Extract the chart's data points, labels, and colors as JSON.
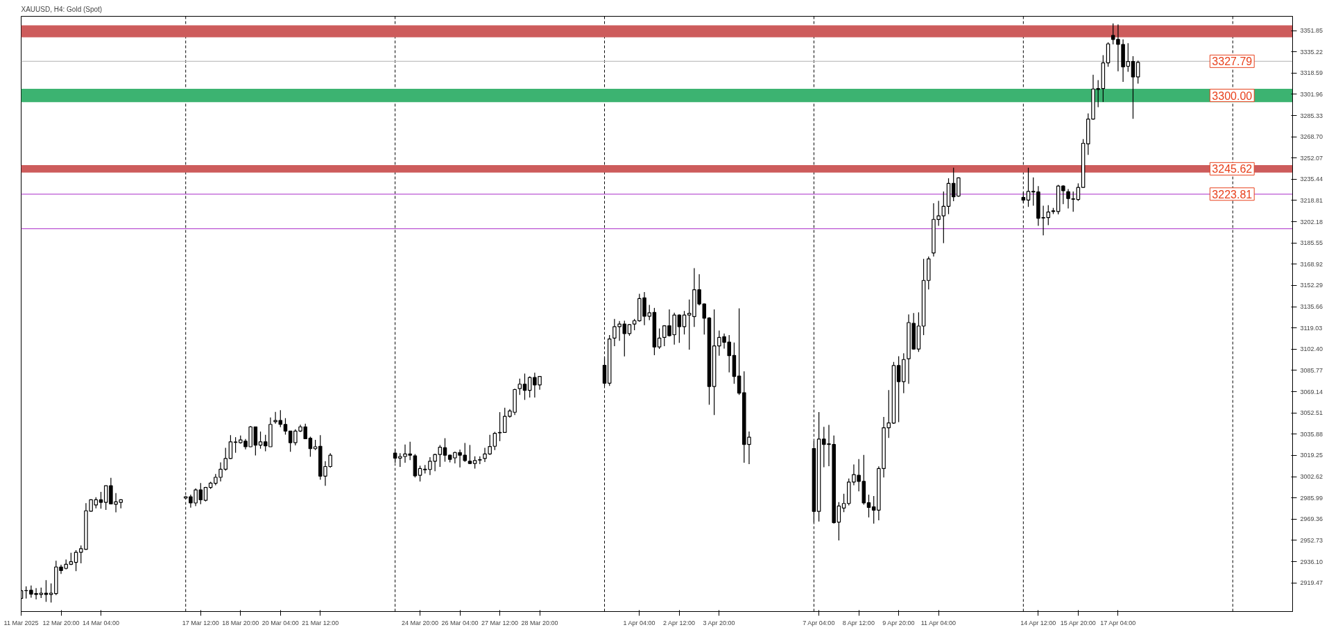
{
  "chart_data": {
    "type": "candlestick",
    "title": "XAUUSD, H4: Gold (Spot)",
    "x": [
      "2025-03-11T12:00",
      "2025-03-11T16:00",
      "2025-03-11T20:00",
      "2025-03-12T00:00",
      "2025-03-12T04:00",
      "2025-03-12T08:00",
      "2025-03-12T12:00",
      "2025-03-12T16:00",
      "2025-03-12T20:00",
      "2025-03-13T00:00",
      "2025-03-13T04:00",
      "2025-03-13T08:00",
      "2025-03-13T12:00",
      "2025-03-13T16:00",
      "2025-03-13T20:00",
      "2025-03-14T00:00",
      "2025-03-14T04:00",
      "2025-03-14T08:00",
      "2025-03-14T12:00",
      "2025-03-14T16:00",
      "2025-03-14T20:00",
      "2025-03-17T00:00",
      "2025-03-17T04:00",
      "2025-03-17T08:00",
      "2025-03-17T12:00",
      "2025-03-17T16:00",
      "2025-03-17T20:00",
      "2025-03-18T00:00",
      "2025-03-18T04:00",
      "2025-03-18T08:00",
      "2025-03-18T12:00",
      "2025-03-18T16:00",
      "2025-03-18T20:00",
      "2025-03-19T00:00",
      "2025-03-19T04:00",
      "2025-03-19T08:00",
      "2025-03-19T12:00",
      "2025-03-19T16:00",
      "2025-03-19T20:00",
      "2025-03-20T00:00",
      "2025-03-20T04:00",
      "2025-03-20T08:00",
      "2025-03-20T12:00",
      "2025-03-20T16:00",
      "2025-03-20T20:00",
      "2025-03-21T00:00",
      "2025-03-21T04:00",
      "2025-03-21T08:00",
      "2025-03-21T12:00",
      "2025-03-21T16:00",
      "2025-03-21T20:00",
      "2025-03-24T00:00",
      "2025-03-24T04:00",
      "2025-03-24T08:00",
      "2025-03-24T12:00",
      "2025-03-24T16:00",
      "2025-03-24T20:00",
      "2025-03-25T00:00",
      "2025-03-25T04:00",
      "2025-03-25T08:00",
      "2025-03-25T12:00",
      "2025-03-25T16:00",
      "2025-03-25T20:00",
      "2025-03-26T00:00",
      "2025-03-26T04:00",
      "2025-03-26T08:00",
      "2025-03-26T12:00",
      "2025-03-26T16:00",
      "2025-03-26T20:00",
      "2025-03-27T00:00",
      "2025-03-27T04:00",
      "2025-03-27T08:00",
      "2025-03-27T12:00",
      "2025-03-27T16:00",
      "2025-03-27T20:00",
      "2025-03-28T00:00",
      "2025-03-28T04:00",
      "2025-03-28T08:00",
      "2025-03-28T12:00",
      "2025-03-28T16:00",
      "2025-03-28T20:00",
      "2025-03-31T00:00",
      "2025-03-31T04:00",
      "2025-03-31T08:00",
      "2025-03-31T12:00",
      "2025-03-31T16:00",
      "2025-03-31T20:00",
      "2025-04-01T00:00",
      "2025-04-01T04:00",
      "2025-04-01T08:00",
      "2025-04-01T12:00",
      "2025-04-01T16:00",
      "2025-04-01T20:00",
      "2025-04-02T00:00",
      "2025-04-02T04:00",
      "2025-04-02T08:00",
      "2025-04-02T12:00",
      "2025-04-02T16:00",
      "2025-04-02T20:00",
      "2025-04-03T00:00",
      "2025-04-03T04:00",
      "2025-04-03T08:00",
      "2025-04-03T12:00",
      "2025-04-03T16:00",
      "2025-04-03T20:00",
      "2025-04-04T00:00",
      "2025-04-04T04:00",
      "2025-04-04T08:00",
      "2025-04-04T12:00",
      "2025-04-04T16:00",
      "2025-04-04T20:00",
      "2025-04-07T00:00",
      "2025-04-07T04:00",
      "2025-04-07T08:00",
      "2025-04-07T12:00",
      "2025-04-07T16:00",
      "2025-04-07T20:00",
      "2025-04-08T00:00",
      "2025-04-08T04:00",
      "2025-04-08T08:00",
      "2025-04-08T12:00",
      "2025-04-08T16:00",
      "2025-04-08T20:00",
      "2025-04-09T00:00",
      "2025-04-09T04:00",
      "2025-04-09T08:00",
      "2025-04-09T12:00",
      "2025-04-09T16:00",
      "2025-04-09T20:00",
      "2025-04-10T00:00",
      "2025-04-10T04:00",
      "2025-04-10T08:00",
      "2025-04-10T12:00",
      "2025-04-10T16:00",
      "2025-04-10T20:00",
      "2025-04-11T00:00",
      "2025-04-11T04:00",
      "2025-04-11T08:00",
      "2025-04-11T12:00",
      "2025-04-11T16:00",
      "2025-04-11T20:00",
      "2025-04-14T00:00",
      "2025-04-14T04:00",
      "2025-04-14T08:00",
      "2025-04-14T12:00",
      "2025-04-14T16:00",
      "2025-04-14T20:00",
      "2025-04-15T00:00",
      "2025-04-15T04:00",
      "2025-04-15T08:00",
      "2025-04-15T12:00",
      "2025-04-15T16:00",
      "2025-04-15T20:00",
      "2025-04-16T00:00",
      "2025-04-16T04:00",
      "2025-04-16T08:00",
      "2025-04-16T12:00",
      "2025-04-16T16:00",
      "2025-04-16T20:00",
      "2025-04-17T00:00",
      "2025-04-17T04:00",
      "2025-04-17T08:00",
      "2025-04-17T12:00",
      "2025-04-17T16:00",
      "2025-04-17T20:00"
    ],
    "ohlc": [
      [
        2907.2,
        2913.4,
        2907.2,
        2913.4
      ],
      [
        2913.3,
        2916.7,
        2907.2,
        2913.4
      ],
      [
        2913.7,
        2917.4,
        2907.9,
        2910.7
      ],
      [
        2911.1,
        2915.3,
        2906.5,
        2910.4
      ],
      [
        2910.4,
        2915.8,
        2907.6,
        2911.4
      ],
      [
        2911.4,
        2921.6,
        2904.6,
        2910.4
      ],
      [
        2910.4,
        2919.0,
        2904.1,
        2911.4
      ],
      [
        2911.1,
        2936.8,
        2909.9,
        2931.9
      ],
      [
        2931.9,
        2933.6,
        2926.4,
        2929.1
      ],
      [
        2930.8,
        2937.8,
        2930.0,
        2934.0
      ],
      [
        2934.0,
        2943.0,
        2933.4,
        2936.0
      ],
      [
        2935.5,
        2945.0,
        2928.6,
        2943.4
      ],
      [
        2943.4,
        2948.8,
        2934.8,
        2946.2
      ],
      [
        2945.7,
        2981.8,
        2945.3,
        2975.9
      ],
      [
        2975.6,
        2984.8,
        2975.2,
        2984.5
      ],
      [
        2980.4,
        2986.5,
        2977.8,
        2984.5
      ],
      [
        2984.5,
        2990.7,
        2977.5,
        2982.5
      ],
      [
        2982.5,
        2995.5,
        2976.6,
        2995.5
      ],
      [
        2995.5,
        3001.7,
        2981.0,
        2981.3
      ],
      [
        2981.0,
        2989.7,
        2974.7,
        2982.9
      ],
      [
        2982.5,
        2984.8,
        2977.8,
        2984.5
      ],
      [
        2985.9,
        2987.6,
        2985.5,
        2986.9
      ],
      [
        2986.9,
        2988.5,
        2978.3,
        2982.0
      ],
      [
        2982.0,
        2993.4,
        2979.6,
        2992.2
      ],
      [
        2992.2,
        2997.6,
        2981.0,
        2984.5
      ],
      [
        2984.1,
        2994.6,
        2983.2,
        2994.2
      ],
      [
        2994.2,
        2998.6,
        2993.0,
        2997.6
      ],
      [
        2997.4,
        3004.7,
        2995.8,
        3002.1
      ],
      [
        3002.1,
        3013.8,
        2998.9,
        3008.4
      ],
      [
        3008.4,
        3025.2,
        3007.2,
        3016.8
      ],
      [
        3016.8,
        3035.1,
        3016.4,
        3029.9
      ],
      [
        3029.5,
        3033.5,
        3021.3,
        3029.7
      ],
      [
        3029.2,
        3034.8,
        3028.5,
        3031.4
      ],
      [
        3030.4,
        3032.1,
        3023.9,
        3026.0
      ],
      [
        3026.0,
        3042.3,
        3025.7,
        3041.6
      ],
      [
        3041.6,
        3041.6,
        3019.2,
        3027.3
      ],
      [
        3027.3,
        3037.9,
        3024.5,
        3029.9
      ],
      [
        3029.9,
        3035.3,
        3022.4,
        3026.7
      ],
      [
        3026.0,
        3048.9,
        3026.0,
        3043.5
      ],
      [
        3045.6,
        3053.3,
        3044.0,
        3046.6
      ],
      [
        3046.6,
        3054.7,
        3041.4,
        3043.5
      ],
      [
        3043.5,
        3048.4,
        3035.5,
        3038.3
      ],
      [
        3038.3,
        3038.3,
        3022.0,
        3029.2
      ],
      [
        3029.2,
        3039.7,
        3027.1,
        3038.3
      ],
      [
        3038.3,
        3043.2,
        3037.6,
        3041.6
      ],
      [
        3041.6,
        3044.0,
        3032.3,
        3032.3
      ],
      [
        3032.7,
        3033.9,
        3018.2,
        3024.5
      ],
      [
        3024.5,
        3031.4,
        3023.4,
        3026.0
      ],
      [
        3026.4,
        3035.1,
        3000.2,
        3003.0
      ],
      [
        3003.0,
        3014.7,
        2995.5,
        3010.5
      ],
      [
        3010.5,
        3021.0,
        3009.6,
        3019.4
      ],
      [
        3021.0,
        3023.9,
        3013.5,
        3017.1
      ],
      [
        3017.1,
        3021.0,
        3010.3,
        3018.4
      ],
      [
        3018.4,
        3027.8,
        3013.5,
        3020.4
      ],
      [
        3020.4,
        3029.9,
        3015.6,
        3019.4
      ],
      [
        3018.9,
        3020.3,
        3001.9,
        3003.3
      ],
      [
        3003.7,
        3011.2,
        2998.8,
        3008.9
      ],
      [
        3008.0,
        3011.7,
        3005.1,
        3008.4
      ],
      [
        3008.2,
        3017.8,
        3003.9,
        3014.7
      ],
      [
        3014.7,
        3020.6,
        3006.8,
        3019.9
      ],
      [
        3019.9,
        3027.4,
        3010.3,
        3025.7
      ],
      [
        3025.2,
        3032.7,
        3014.3,
        3019.4
      ],
      [
        3019.4,
        3019.9,
        3013.8,
        3016.1
      ],
      [
        3017.3,
        3022.2,
        3012.9,
        3021.5
      ],
      [
        3021.5,
        3023.8,
        3009.8,
        3019.4
      ],
      [
        3019.4,
        3029.0,
        3014.2,
        3015.2
      ],
      [
        3014.7,
        3027.4,
        3012.4,
        3012.9
      ],
      [
        3012.9,
        3018.5,
        3008.9,
        3015.2
      ],
      [
        3015.6,
        3018.5,
        3012.4,
        3015.9
      ],
      [
        3016.8,
        3025.2,
        3014.0,
        3020.4
      ],
      [
        3020.4,
        3035.3,
        3019.6,
        3026.2
      ],
      [
        3026.4,
        3037.7,
        3023.4,
        3036.5
      ],
      [
        3036.9,
        3053.1,
        3030.4,
        3037.2
      ],
      [
        3037.2,
        3056.6,
        3037.0,
        3049.8
      ],
      [
        3049.8,
        3055.4,
        3048.8,
        3054.0
      ],
      [
        3053.0,
        3071.5,
        3050.9,
        3070.8
      ],
      [
        3071.5,
        3079.3,
        3066.6,
        3075.0
      ],
      [
        3075.0,
        3083.3,
        3062.7,
        3070.2
      ],
      [
        3070.2,
        3081.1,
        3064.5,
        3080.2
      ],
      [
        3080.2,
        3084.0,
        3064.5,
        3074.4
      ],
      [
        3074.4,
        3081.4,
        3070.6,
        3081.1
      ],
      [
        3089.8,
        3096.3,
        3073.6,
        3075.8
      ],
      [
        3075.8,
        3113.4,
        3073.7,
        3110.4
      ],
      [
        3111.1,
        3126.0,
        3104.7,
        3120.0
      ],
      [
        3120.0,
        3124.4,
        3109.0,
        3122.1
      ],
      [
        3122.1,
        3124.7,
        3096.8,
        3114.6
      ],
      [
        3114.6,
        3122.1,
        3112.9,
        3121.6
      ],
      [
        3122.1,
        3126.0,
        3117.2,
        3124.7
      ],
      [
        3124.6,
        3145.7,
        3123.9,
        3142.0
      ],
      [
        3142.6,
        3147.1,
        3121.2,
        3128.2
      ],
      [
        3128.2,
        3137.0,
        3125.1,
        3130.9
      ],
      [
        3131.2,
        3134.7,
        3097.7,
        3104.1
      ],
      [
        3104.1,
        3118.6,
        3102.6,
        3111.1
      ],
      [
        3111.6,
        3121.2,
        3104.7,
        3120.7
      ],
      [
        3120.7,
        3133.5,
        3112.3,
        3113.0
      ],
      [
        3113.7,
        3130.9,
        3106.0,
        3129.1
      ],
      [
        3129.1,
        3129.6,
        3107.3,
        3120.0
      ],
      [
        3120.0,
        3132.3,
        3113.9,
        3129.1
      ],
      [
        3129.1,
        3141.3,
        3102.0,
        3130.5
      ],
      [
        3127.9,
        3165.8,
        3119.8,
        3148.9
      ],
      [
        3148.9,
        3161.1,
        3136.6,
        3137.8
      ],
      [
        3137.8,
        3138.2,
        3113.9,
        3126.7
      ],
      [
        3126.8,
        3127.4,
        3058.9,
        3073.2
      ],
      [
        3073.2,
        3133.5,
        3050.9,
        3104.9
      ],
      [
        3104.9,
        3116.9,
        3097.3,
        3111.6
      ],
      [
        3112.2,
        3114.6,
        3102.9,
        3107.8
      ],
      [
        3108.0,
        3113.4,
        3084.2,
        3097.3
      ],
      [
        3097.5,
        3107.6,
        3075.3,
        3081.1
      ],
      [
        3081.4,
        3134.3,
        3066.6,
        3068.0
      ],
      [
        3068.3,
        3085.1,
        3013.5,
        3027.8
      ],
      [
        3027.8,
        3037.9,
        3012.4,
        3033.5
      ],
      [
        3024.6,
        3030.4,
        2966.6,
        2975.4
      ],
      [
        2975.4,
        3053.1,
        2967.5,
        3032.0
      ],
      [
        3032.0,
        3041.6,
        3010.0,
        3027.8
      ],
      [
        3028.3,
        3043.1,
        3010.8,
        3027.8
      ],
      [
        3027.8,
        3034.8,
        2965.8,
        2966.6
      ],
      [
        2967.0,
        2982.7,
        2952.7,
        2979.6
      ],
      [
        2978.0,
        2989.2,
        2974.8,
        2981.6
      ],
      [
        2981.6,
        3001.2,
        2980.1,
        2998.4
      ],
      [
        2998.4,
        3012.1,
        2995.8,
        3004.2
      ],
      [
        3003.7,
        3016.4,
        2991.1,
        2998.9
      ],
      [
        2998.9,
        3019.6,
        2980.6,
        2982.0
      ],
      [
        2982.2,
        2988.5,
        2970.7,
        2978.5
      ],
      [
        2979.0,
        2987.4,
        2965.8,
        2976.4
      ],
      [
        2976.4,
        3010.7,
        2968.4,
        3008.9
      ],
      [
        3008.9,
        3049.3,
        3001.9,
        3040.9
      ],
      [
        3040.9,
        3070.4,
        3032.9,
        3044.7
      ],
      [
        3044.5,
        3092.4,
        3043.9,
        3089.6
      ],
      [
        3089.6,
        3096.9,
        3045.3,
        3077.0
      ],
      [
        3077.0,
        3099.2,
        3068.0,
        3094.3
      ],
      [
        3094.9,
        3129.6,
        3075.3,
        3123.2
      ],
      [
        3122.6,
        3130.7,
        3102.0,
        3102.5
      ],
      [
        3102.5,
        3131.2,
        3100.3,
        3120.5
      ],
      [
        3120.5,
        3173.1,
        3113.4,
        3156.2
      ],
      [
        3156.2,
        3174.9,
        3149.2,
        3173.1
      ],
      [
        3177.7,
        3216.6,
        3174.9,
        3204.0
      ],
      [
        3203.9,
        3218.5,
        3199.0,
        3206.8
      ],
      [
        3206.8,
        3225.9,
        3185.4,
        3214.3
      ],
      [
        3214.3,
        3236.2,
        3208.1,
        3232.2
      ],
      [
        3232.2,
        3244.4,
        3218.2,
        3221.7
      ],
      [
        3222.2,
        3236.9,
        3221.7,
        3236.5
      ],
      [
        3221.2,
        3225.2,
        3217.0,
        3219.1
      ],
      [
        3219.1,
        3244.4,
        3213.8,
        3225.9
      ],
      [
        3225.5,
        3236.9,
        3214.7,
        3225.9
      ],
      [
        3225.5,
        3230.1,
        3199.0,
        3204.9
      ],
      [
        3205.4,
        3214.7,
        3191.5,
        3205.1
      ],
      [
        3205.4,
        3215.1,
        3199.5,
        3209.8
      ],
      [
        3210.2,
        3213.0,
        3208.2,
        3210.7
      ],
      [
        3210.2,
        3231.0,
        3207.9,
        3230.1
      ],
      [
        3230.1,
        3230.8,
        3215.9,
        3226.4
      ],
      [
        3225.7,
        3227.8,
        3212.6,
        3220.3
      ],
      [
        3220.1,
        3225.9,
        3210.0,
        3219.8
      ],
      [
        3219.6,
        3232.2,
        3218.5,
        3229.0
      ],
      [
        3229.0,
        3266.8,
        3228.7,
        3263.6
      ],
      [
        3263.1,
        3287.0,
        3254.5,
        3282.5
      ],
      [
        3282.5,
        3317.2,
        3282.1,
        3306.1
      ],
      [
        3306.4,
        3313.1,
        3291.9,
        3305.7
      ],
      [
        3306.4,
        3332.6,
        3295.9,
        3326.5
      ],
      [
        3326.5,
        3342.6,
        3323.5,
        3341.4
      ],
      [
        3348.0,
        3357.4,
        3341.0,
        3344.9
      ],
      [
        3344.9,
        3356.6,
        3320.0,
        3341.0
      ],
      [
        3341.0,
        3345.0,
        3311.7,
        3323.4
      ],
      [
        3323.9,
        3341.9,
        3319.5,
        3327.6
      ],
      [
        3327.6,
        3331.8,
        3282.8,
        3315.5
      ],
      [
        3315.5,
        3328.3,
        3310.3,
        3326.9
      ]
    ],
    "xlim": [
      "2025-03-11T12:00",
      "2025-04-23T00:00"
    ],
    "xticks": [
      {
        "value": "2025-03-11T12:00",
        "label": "11 Mar 2025"
      },
      {
        "value": "2025-03-12T20:00",
        "label": "12 Mar 20:00"
      },
      {
        "value": "2025-03-14T04:00",
        "label": "14 Mar 04:00"
      },
      {
        "value": "2025-03-17T12:00",
        "label": "17 Mar 12:00"
      },
      {
        "value": "2025-03-18T20:00",
        "label": "18 Mar 20:00"
      },
      {
        "value": "2025-03-20T04:00",
        "label": "20 Mar 04:00"
      },
      {
        "value": "2025-03-21T12:00",
        "label": "21 Mar 12:00"
      },
      {
        "value": "2025-03-24T20:00",
        "label": "24 Mar 20:00"
      },
      {
        "value": "2025-03-26T04:00",
        "label": "26 Mar 04:00"
      },
      {
        "value": "2025-03-27T12:00",
        "label": "27 Mar 12:00"
      },
      {
        "value": "2025-03-28T20:00",
        "label": "28 Mar 20:00"
      },
      {
        "value": "2025-04-01T04:00",
        "label": "1 Apr 04:00"
      },
      {
        "value": "2025-04-02T12:00",
        "label": "2 Apr 12:00"
      },
      {
        "value": "2025-04-03T20:00",
        "label": "3 Apr 20:00"
      },
      {
        "value": "2025-04-07T04:00",
        "label": "7 Apr 04:00"
      },
      {
        "value": "2025-04-08T12:00",
        "label": "8 Apr 12:00"
      },
      {
        "value": "2025-04-09T20:00",
        "label": "9 Apr 20:00"
      },
      {
        "value": "2025-04-11T04:00",
        "label": "11 Apr 04:00"
      },
      {
        "value": "2025-04-14T12:00",
        "label": "14 Apr 12:00"
      },
      {
        "value": "2025-04-15T20:00",
        "label": "15 Apr 20:00"
      },
      {
        "value": "2025-04-17T04:00",
        "label": "17 Apr 04:00"
      }
    ],
    "ylim": [
      2897,
      3363
    ],
    "yticks": [
      3351.85,
      3335.22,
      3318.59,
      3301.96,
      3285.33,
      {
        "value": 3268.7,
        "label": "3268.70"
      },
      3252.07,
      3235.44,
      3218.81,
      3202.18,
      3185.55,
      3168.92,
      3152.29,
      3135.66,
      3119.03,
      {
        "value": 3102.4,
        "label": "3102.40"
      },
      3085.77,
      3069.14,
      3052.51,
      3035.88,
      3019.25,
      3002.62,
      2985.99,
      2969.36,
      2952.73,
      {
        "value": 2936.1,
        "label": "2936.10"
      },
      2919.47
    ],
    "ref_lines": [
      {
        "axis": "x",
        "value": "2025-03-17T00:00",
        "color": "#000000",
        "line_style": "dashed"
      },
      {
        "axis": "x",
        "value": "2025-03-24T00:00",
        "color": "#000000",
        "line_style": "dashed"
      },
      {
        "axis": "x",
        "value": "2025-03-31T00:00",
        "color": "#000000",
        "line_style": "dashed"
      },
      {
        "axis": "x",
        "value": "2025-04-07T00:00",
        "color": "#000000",
        "line_style": "dashed"
      },
      {
        "axis": "x",
        "value": "2025-04-14T00:00",
        "color": "#000000",
        "line_style": "dashed"
      },
      {
        "axis": "x",
        "value": "2025-04-21T00:00",
        "color": "#000000",
        "line_style": "dashed"
      },
      {
        "axis": "y",
        "value": 3327.79,
        "label": "3327.79",
        "color": "#c0c0c0",
        "line_style": "solid"
      },
      {
        "axis": "y",
        "value": 3223.81,
        "label": "3223.81",
        "color": "#ba55d3",
        "line_style": "solid"
      },
      {
        "axis": "y",
        "value": 3244.9,
        "color": "#ba55d3",
        "line_style": "solid"
      },
      {
        "axis": "y",
        "value": 3196.7,
        "color": "#ba55d3",
        "line_style": "solid"
      }
    ],
    "bands": [
      {
        "axis": "y",
        "from": 3346.6,
        "to": 3356.0,
        "color": "#cd5c5c"
      },
      {
        "axis": "y",
        "from": 3295.8,
        "to": 3306.3,
        "label": "3300.00",
        "color": "#3cb371"
      },
      {
        "axis": "y",
        "from": 3240.7,
        "to": 3246.5,
        "label": "3245.62",
        "color": "#cd5c5c"
      }
    ],
    "grid": false
  }
}
